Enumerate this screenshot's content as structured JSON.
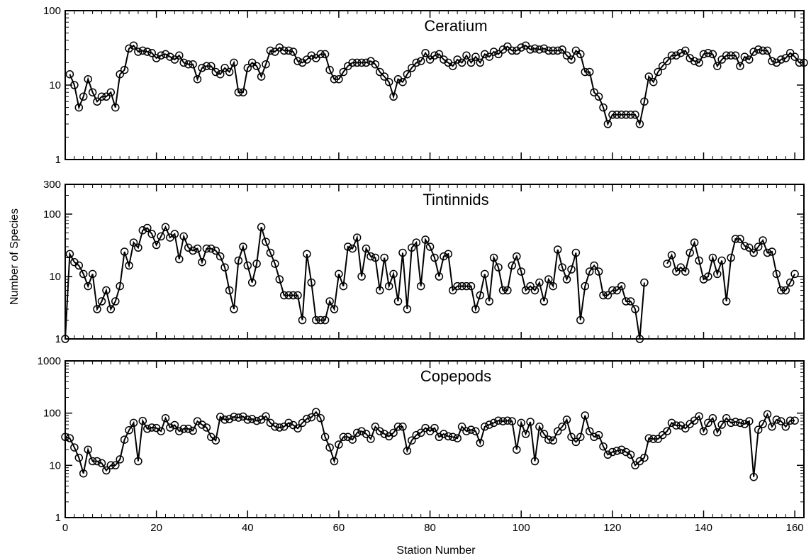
{
  "figure": {
    "ylabel": "Number of Species",
    "xlabel": "Station Number"
  },
  "chart_data": [
    {
      "type": "line",
      "title": "Ceratium",
      "ylog": true,
      "ylim": [
        1,
        100
      ],
      "yticks": [
        {
          "value": 1,
          "label": "1"
        },
        {
          "value": 10,
          "label": "10"
        },
        {
          "value": 100,
          "label": "100"
        }
      ],
      "xlim": [
        0,
        162
      ],
      "xticks": [
        0,
        20,
        40,
        60,
        80,
        100,
        120,
        140,
        160
      ],
      "marker": "open-circle",
      "line_color": "#000000",
      "x_start": 1,
      "series": [
        {
          "values": [
            14,
            10,
            5,
            7,
            12,
            8,
            6,
            7,
            7,
            8,
            5,
            14,
            16,
            31,
            34,
            28,
            29,
            28,
            27,
            23,
            25,
            26,
            24,
            22,
            25,
            20,
            19,
            19,
            12,
            17,
            18,
            18,
            15,
            14,
            17,
            15,
            20,
            8,
            8,
            17,
            20,
            18,
            13,
            19,
            29,
            28,
            32,
            29,
            29,
            28,
            21,
            20,
            22,
            25,
            23,
            26,
            26,
            16,
            12,
            12,
            15,
            18,
            20,
            20,
            20,
            20,
            21,
            19,
            15,
            13,
            11,
            7,
            12,
            11,
            14,
            17,
            20,
            21,
            27,
            22,
            25,
            26,
            22,
            20,
            18,
            22,
            20,
            25,
            20,
            24,
            20,
            26,
            24,
            28,
            26,
            30,
            33,
            29,
            29,
            32,
            34,
            30,
            31,
            30,
            31,
            29,
            29,
            29,
            30,
            25,
            22,
            29,
            26,
            15,
            15,
            8,
            7,
            5,
            3,
            4,
            4,
            4,
            4,
            4,
            4,
            3,
            6,
            13,
            11,
            15,
            18,
            21,
            25,
            25,
            27,
            29,
            23,
            21,
            20,
            26,
            27,
            26,
            18,
            22,
            25,
            25,
            25,
            18,
            24,
            22,
            28,
            30,
            29,
            29,
            21,
            20,
            22,
            23,
            27,
            24,
            20,
            20
          ]
        }
      ]
    },
    {
      "type": "line",
      "title": "Tintinnids",
      "ylog": true,
      "ylim": [
        1,
        300
      ],
      "yticks": [
        {
          "value": 1,
          "label": "1"
        },
        {
          "value": 10,
          "label": "10"
        },
        {
          "value": 100,
          "label": "100"
        },
        {
          "value": 300,
          "label": "300"
        }
      ],
      "xlim": [
        0,
        162
      ],
      "xticks": [
        0,
        20,
        40,
        60,
        80,
        100,
        120,
        140,
        160
      ],
      "marker": "open-circle",
      "line_color": "#000000",
      "x_start": 0,
      "series": [
        {
          "values": [
            1,
            23,
            17,
            15,
            11,
            7,
            11,
            3,
            4,
            6,
            3,
            4,
            7,
            25,
            15,
            35,
            29,
            55,
            60,
            48,
            32,
            44,
            62,
            42,
            48,
            19,
            44,
            29,
            26,
            28,
            17,
            28,
            28,
            26,
            21,
            14,
            6,
            3,
            18,
            30,
            15,
            8,
            16,
            62,
            36,
            24,
            16,
            9,
            5,
            5,
            5,
            5,
            2,
            23,
            8,
            2,
            2,
            2,
            4,
            3,
            11,
            7,
            30,
            28,
            42,
            10,
            28,
            21,
            20,
            6,
            20,
            7,
            11,
            4,
            24,
            3,
            29,
            35,
            7,
            39,
            30,
            20,
            10,
            21,
            23,
            6,
            7,
            7,
            7,
            7,
            3,
            5,
            11,
            4,
            20,
            14,
            6,
            6,
            15,
            21,
            12,
            6,
            7,
            6,
            8,
            4,
            9,
            7,
            27,
            14,
            9,
            13,
            24,
            2,
            7,
            12,
            15,
            12,
            5,
            5,
            6,
            6,
            7,
            4,
            4,
            3,
            1,
            8,
            0,
            0,
            0,
            0,
            16,
            22,
            12,
            14,
            12,
            24,
            35,
            18,
            9,
            10,
            20,
            11,
            18,
            4,
            20,
            40,
            40,
            31,
            29,
            24,
            30,
            38,
            24,
            25,
            11,
            6,
            6,
            8,
            11
          ]
        }
      ]
    },
    {
      "type": "line",
      "title": "Copepods",
      "ylog": true,
      "ylim": [
        1,
        1000
      ],
      "yticks": [
        {
          "value": 1,
          "label": "1"
        },
        {
          "value": 10,
          "label": "10"
        },
        {
          "value": 100,
          "label": "100"
        },
        {
          "value": 1000,
          "label": "1000"
        }
      ],
      "xlim": [
        0,
        162
      ],
      "xticks": [
        0,
        20,
        40,
        60,
        80,
        100,
        120,
        140,
        160
      ],
      "xticklabels": [
        "0",
        "20",
        "40",
        "60",
        "80",
        "100",
        "120",
        "140",
        "160"
      ],
      "marker": "open-circle",
      "line_color": "#000000",
      "x_start": 0,
      "series": [
        {
          "values": [
            35,
            33,
            22,
            14,
            7,
            20,
            12,
            12,
            11,
            8,
            10,
            10,
            13,
            31,
            47,
            65,
            12,
            71,
            50,
            53,
            52,
            45,
            80,
            53,
            59,
            45,
            50,
            50,
            46,
            70,
            60,
            53,
            35,
            30,
            85,
            75,
            77,
            85,
            82,
            86,
            75,
            77,
            71,
            75,
            87,
            65,
            55,
            53,
            55,
            65,
            59,
            51,
            65,
            78,
            83,
            105,
            80,
            35,
            22,
            12,
            25,
            35,
            35,
            31,
            42,
            45,
            40,
            32,
            55,
            45,
            40,
            36,
            42,
            55,
            55,
            19,
            30,
            38,
            42,
            52,
            45,
            52,
            35,
            40,
            36,
            35,
            33,
            55,
            45,
            48,
            45,
            27,
            55,
            60,
            65,
            72,
            70,
            72,
            70,
            20,
            65,
            40,
            68,
            12,
            55,
            40,
            31,
            30,
            45,
            55,
            75,
            35,
            28,
            35,
            90,
            45,
            35,
            38,
            23,
            16,
            18,
            19,
            20,
            18,
            16,
            10,
            12,
            14,
            33,
            32,
            32,
            38,
            45,
            65,
            58,
            58,
            51,
            62,
            72,
            87,
            45,
            65,
            80,
            43,
            60,
            80,
            65,
            68,
            65,
            62,
            70,
            6,
            48,
            62,
            95,
            55,
            75,
            70,
            55,
            72,
            72
          ]
        }
      ]
    }
  ]
}
